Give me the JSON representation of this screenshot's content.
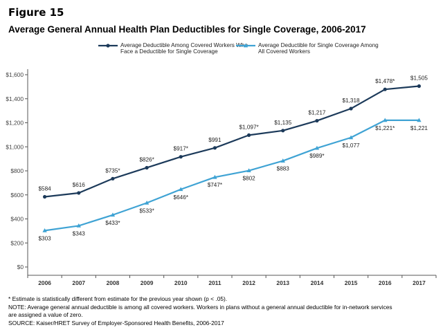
{
  "figure_label": "Figure 15",
  "chart_data": {
    "type": "line",
    "title": "Average General Annual Health Plan Deductibles for Single Coverage, 2006-2017",
    "xlabel": "",
    "ylabel": "",
    "x": [
      "2006",
      "2007",
      "2008",
      "2009",
      "2010",
      "2011",
      "2012",
      "2013",
      "2014",
      "2015",
      "2016",
      "2017"
    ],
    "ylim": [
      0,
      1600
    ],
    "yticks": [
      "$0",
      "$200",
      "$400",
      "$600",
      "$800",
      "$1,000",
      "$1,200",
      "$1,400",
      "$1,600"
    ],
    "legend_position": "top",
    "grid": false,
    "series": [
      {
        "name_lines": [
          "Average Deductible Among Covered Workers Who",
          "Face a Deductible for Single Coverage"
        ],
        "color": "#1c3a5a",
        "marker": "circle",
        "values": [
          584,
          616,
          735,
          826,
          917,
          991,
          1097,
          1135,
          1217,
          1318,
          1478,
          1505
        ],
        "labels": [
          "$584",
          "$616",
          "$735*",
          "$826*",
          "$917*",
          "$991",
          "$1,097*",
          "$1,135",
          "$1,217",
          "$1,318",
          "$1,478*",
          "$1,505"
        ]
      },
      {
        "name_lines": [
          "Average Deductible for Single Coverage Among",
          "All Covered Workers"
        ],
        "color": "#3fa3d4",
        "marker": "triangle",
        "values": [
          303,
          343,
          433,
          533,
          646,
          747,
          802,
          883,
          989,
          1077,
          1221,
          1221
        ],
        "labels": [
          "$303",
          "$343",
          "$433*",
          "$533*",
          "$646*",
          "$747*",
          "$802",
          "$883",
          "$989*",
          "$1,077",
          "$1,221*",
          "$1,221"
        ]
      }
    ]
  },
  "notes": [
    "* Estimate is statistically different from estimate for the previous year shown (p < .05).",
    "NOTE: Average general annual deductible is among all covered workers. Workers in plans without a general annual deductible for in-network services",
    "are assigned a value of zero.",
    "SOURCE: Kaiser/HRET Survey of Employer-Sponsored Health Benefits, 2006-2017"
  ]
}
